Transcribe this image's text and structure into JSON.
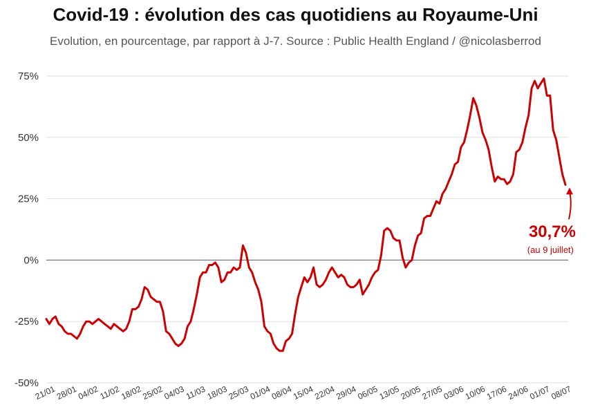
{
  "chart_data": {
    "type": "line",
    "title": "Covid-19 : évolution des cas quotidiens au Royaume-Uni",
    "subtitle": "Evolution, en pourcentage, par rapport à J-7. Source : Public Health England / @nicolasberrod",
    "xlabel": "",
    "ylabel": "",
    "ylim": [
      -50,
      75
    ],
    "yticks": [
      75,
      50,
      25,
      0,
      -25,
      -50
    ],
    "ytick_labels": [
      "75%",
      "50%",
      "25%",
      "0%",
      "-25%",
      "-50%"
    ],
    "grid": true,
    "line_color": "#cc0000",
    "x_start": "21/01",
    "x_end": "09/07",
    "xtick_labels": [
      "21/01",
      "28/01",
      "04/02",
      "11/02",
      "18/02",
      "25/02",
      "04/03",
      "11/03",
      "18/03",
      "25/03",
      "01/04",
      "08/04",
      "15/04",
      "22/04",
      "29/04",
      "06/05",
      "13/05",
      "20/05",
      "27/05",
      "03/06",
      "10/06",
      "17/06",
      "24/06",
      "01/07",
      "08/07"
    ],
    "series": [
      {
        "values": [
          -24,
          -26,
          -24,
          -23,
          -26,
          -27,
          -29,
          -30,
          -30,
          -31,
          -32,
          -30,
          -27,
          -25,
          -25,
          -26,
          -25,
          -24,
          -25,
          -26,
          -27,
          -28,
          -26,
          -27,
          -28,
          -29,
          -28,
          -25,
          -20,
          -20,
          -19,
          -16,
          -11,
          -12,
          -15,
          -16,
          -17,
          -17,
          -21,
          -29,
          -30,
          -32,
          -34,
          -35,
          -34,
          -32,
          -27,
          -25,
          -20,
          -14,
          -7,
          -5,
          -5,
          -2,
          -2,
          -1,
          -3,
          -9,
          -8,
          -5,
          -5,
          -3,
          -4,
          -3,
          6,
          3,
          -3,
          -5,
          -9,
          -12,
          -17,
          -27,
          -29,
          -30,
          -34,
          -36,
          -37,
          -37,
          -33,
          -32,
          -30,
          -22,
          -15,
          -11,
          -7,
          -9,
          -7,
          -3,
          -10,
          -11,
          -10,
          -8,
          -5,
          -3,
          -5,
          -7,
          -6,
          -7,
          -10,
          -11,
          -11,
          -10,
          -8,
          -14,
          -12,
          -10,
          -7,
          -5,
          -4,
          2,
          12,
          13,
          12,
          9,
          8,
          8,
          1,
          -3,
          -1,
          0,
          6,
          10,
          11,
          17,
          18,
          18,
          21,
          24,
          23,
          27,
          29,
          32,
          35,
          39,
          40,
          46,
          48,
          53,
          59,
          66,
          63,
          58,
          52,
          49,
          45,
          38,
          32,
          34,
          33,
          33,
          31,
          32,
          35,
          44,
          45,
          48,
          54,
          59,
          70,
          73,
          70,
          72,
          74,
          67,
          67,
          53,
          49,
          42,
          35,
          30.7
        ]
      }
    ],
    "annotation": {
      "value_label": "30,7%",
      "note": "(au 9 juillet)",
      "color": "#cc0000"
    }
  }
}
